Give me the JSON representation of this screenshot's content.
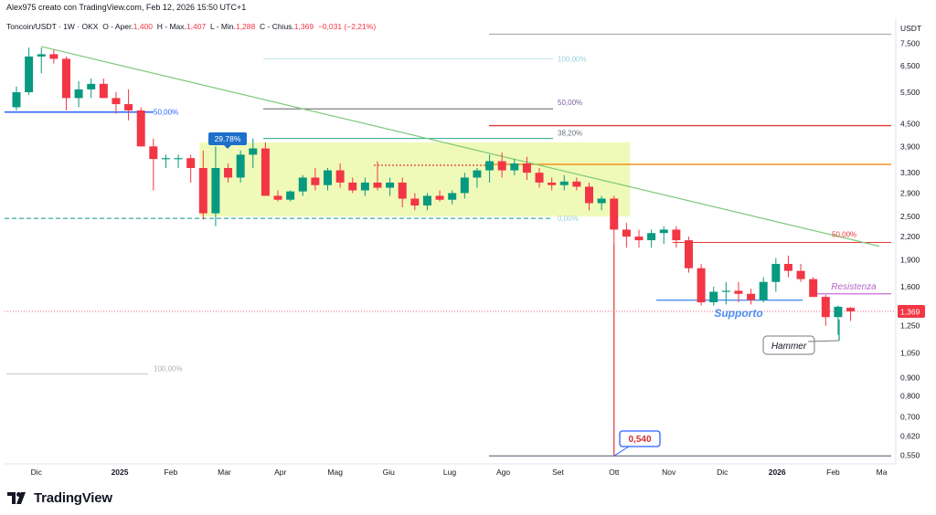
{
  "header": {
    "author_line": "Alex975 creato con TradingView.com, Feb 12, 2026 15:50 UTC+1",
    "symbol": "Toncoin/USDT · 1W · OKX",
    "open_label": "O - Aper.",
    "open": "1,400",
    "high_label": "H - Max.",
    "high": "1,407",
    "low_label": "L - Min.",
    "low": "1,288",
    "close_label": "C - Chius.",
    "close": "1,369",
    "change": "−0,031 (−2,21%)"
  },
  "currency": "USDT",
  "footer": {
    "brand": "TradingView"
  },
  "chart_data": {
    "type": "candlestick",
    "scale": "log",
    "ylim": [
      0.52,
      8.3
    ],
    "yticks": [
      "7,500",
      "6,500",
      "5,500",
      "4,500",
      "3,900",
      "3,300",
      "2,900",
      "2,500",
      "2,200",
      "1,900",
      "1,600",
      "1,400",
      "1,250",
      "1,050",
      "0,900",
      "0,800",
      "0,700",
      "0,620",
      "0,550"
    ],
    "ytick_values": [
      7.5,
      6.5,
      5.5,
      4.5,
      3.9,
      3.3,
      2.9,
      2.5,
      2.2,
      1.9,
      1.6,
      1.4,
      1.25,
      1.05,
      0.9,
      0.8,
      0.7,
      0.62,
      0.55
    ],
    "x_labels": [
      "Dic",
      "2025",
      "Feb",
      "Mar",
      "Apr",
      "Mag",
      "Giu",
      "Lug",
      "Ago",
      "Set",
      "Ott",
      "Nov",
      "Dic",
      "2026",
      "Feb",
      "Ma"
    ],
    "x_label_bold": [
      "2025",
      "2026"
    ],
    "week_count": 70,
    "x_label_weeks": [
      1.6,
      8.3,
      12.4,
      16.7,
      21.2,
      25.6,
      29.9,
      34.8,
      39.1,
      43.5,
      48.0,
      52.4,
      56.7,
      61.1,
      65.6,
      69.5
    ],
    "candles": [
      {
        "o": 5.0,
        "h": 5.7,
        "l": 4.9,
        "c": 5.5
      },
      {
        "o": 5.5,
        "h": 7.3,
        "l": 5.4,
        "c": 6.9
      },
      {
        "o": 6.9,
        "h": 7.3,
        "l": 6.2,
        "c": 7.0
      },
      {
        "o": 7.0,
        "h": 7.2,
        "l": 6.6,
        "c": 6.8
      },
      {
        "o": 6.8,
        "h": 6.9,
        "l": 4.9,
        "c": 5.3
      },
      {
        "o": 5.3,
        "h": 5.9,
        "l": 5.0,
        "c": 5.6
      },
      {
        "o": 5.6,
        "h": 6.0,
        "l": 5.3,
        "c": 5.8
      },
      {
        "o": 5.8,
        "h": 6.0,
        "l": 5.3,
        "c": 5.3
      },
      {
        "o": 5.3,
        "h": 5.5,
        "l": 4.8,
        "c": 5.1
      },
      {
        "o": 5.1,
        "h": 5.6,
        "l": 4.6,
        "c": 4.9
      },
      {
        "o": 4.9,
        "h": 5.0,
        "l": 3.9,
        "c": 3.9
      },
      {
        "o": 3.9,
        "h": 4.1,
        "l": 2.95,
        "c": 3.6
      },
      {
        "o": 3.6,
        "h": 3.7,
        "l": 3.4,
        "c": 3.62
      },
      {
        "o": 3.62,
        "h": 3.7,
        "l": 3.4,
        "c": 3.62
      },
      {
        "o": 3.62,
        "h": 3.7,
        "l": 3.1,
        "c": 3.4
      },
      {
        "o": 3.4,
        "h": 3.8,
        "l": 2.45,
        "c": 2.55
      },
      {
        "o": 2.55,
        "h": 3.9,
        "l": 2.35,
        "c": 3.4
      },
      {
        "o": 3.4,
        "h": 3.5,
        "l": 3.1,
        "c": 3.2
      },
      {
        "o": 3.2,
        "h": 3.8,
        "l": 3.1,
        "c": 3.7
      },
      {
        "o": 3.7,
        "h": 4.1,
        "l": 3.4,
        "c": 3.85
      },
      {
        "o": 3.85,
        "h": 4.0,
        "l": 2.85,
        "c": 2.85
      },
      {
        "o": 2.85,
        "h": 2.95,
        "l": 2.75,
        "c": 2.78
      },
      {
        "o": 2.78,
        "h": 2.95,
        "l": 2.75,
        "c": 2.93
      },
      {
        "o": 2.93,
        "h": 3.25,
        "l": 2.85,
        "c": 3.2
      },
      {
        "o": 3.2,
        "h": 3.4,
        "l": 2.95,
        "c": 3.05
      },
      {
        "o": 3.05,
        "h": 3.4,
        "l": 2.95,
        "c": 3.35
      },
      {
        "o": 3.35,
        "h": 3.5,
        "l": 3.0,
        "c": 3.1
      },
      {
        "o": 3.1,
        "h": 3.2,
        "l": 2.9,
        "c": 2.95
      },
      {
        "o": 2.95,
        "h": 3.2,
        "l": 2.85,
        "c": 3.1
      },
      {
        "o": 3.1,
        "h": 3.55,
        "l": 2.95,
        "c": 3.0
      },
      {
        "o": 3.0,
        "h": 3.2,
        "l": 2.85,
        "c": 3.1
      },
      {
        "o": 3.1,
        "h": 3.2,
        "l": 2.65,
        "c": 2.8
      },
      {
        "o": 2.8,
        "h": 2.9,
        "l": 2.6,
        "c": 2.68
      },
      {
        "o": 2.68,
        "h": 2.9,
        "l": 2.6,
        "c": 2.85
      },
      {
        "o": 2.85,
        "h": 2.95,
        "l": 2.75,
        "c": 2.78
      },
      {
        "o": 2.78,
        "h": 2.95,
        "l": 2.7,
        "c": 2.9
      },
      {
        "o": 2.9,
        "h": 3.3,
        "l": 2.8,
        "c": 3.2
      },
      {
        "o": 3.2,
        "h": 3.4,
        "l": 3.0,
        "c": 3.35
      },
      {
        "o": 3.35,
        "h": 3.7,
        "l": 3.1,
        "c": 3.55
      },
      {
        "o": 3.55,
        "h": 3.75,
        "l": 3.2,
        "c": 3.35
      },
      {
        "o": 3.35,
        "h": 3.6,
        "l": 3.25,
        "c": 3.5
      },
      {
        "o": 3.5,
        "h": 3.65,
        "l": 3.15,
        "c": 3.3
      },
      {
        "o": 3.3,
        "h": 3.4,
        "l": 3.0,
        "c": 3.1
      },
      {
        "o": 3.1,
        "h": 3.2,
        "l": 2.95,
        "c": 3.05
      },
      {
        "o": 3.05,
        "h": 3.25,
        "l": 2.95,
        "c": 3.12
      },
      {
        "o": 3.12,
        "h": 3.2,
        "l": 2.95,
        "c": 3.02
      },
      {
        "o": 3.02,
        "h": 3.1,
        "l": 2.6,
        "c": 2.72
      },
      {
        "o": 2.72,
        "h": 2.85,
        "l": 2.6,
        "c": 2.8
      },
      {
        "o": 2.8,
        "h": 2.85,
        "l": 2.1,
        "c": 2.3
      },
      {
        "o": 2.3,
        "h": 2.4,
        "l": 2.05,
        "c": 2.2
      },
      {
        "o": 2.2,
        "h": 2.3,
        "l": 2.05,
        "c": 2.15
      },
      {
        "o": 2.15,
        "h": 2.3,
        "l": 2.05,
        "c": 2.25
      },
      {
        "o": 2.25,
        "h": 2.35,
        "l": 2.1,
        "c": 2.3
      },
      {
        "o": 2.3,
        "h": 2.35,
        "l": 2.05,
        "c": 2.15
      },
      {
        "o": 2.15,
        "h": 2.2,
        "l": 1.75,
        "c": 1.8
      },
      {
        "o": 1.8,
        "h": 1.85,
        "l": 1.42,
        "c": 1.45
      },
      {
        "o": 1.45,
        "h": 1.6,
        "l": 1.42,
        "c": 1.55
      },
      {
        "o": 1.55,
        "h": 1.65,
        "l": 1.43,
        "c": 1.56
      },
      {
        "o": 1.56,
        "h": 1.65,
        "l": 1.45,
        "c": 1.53
      },
      {
        "o": 1.53,
        "h": 1.58,
        "l": 1.43,
        "c": 1.47
      },
      {
        "o": 1.47,
        "h": 1.7,
        "l": 1.45,
        "c": 1.65
      },
      {
        "o": 1.65,
        "h": 1.92,
        "l": 1.55,
        "c": 1.85
      },
      {
        "o": 1.85,
        "h": 1.95,
        "l": 1.7,
        "c": 1.77
      },
      {
        "o": 1.77,
        "h": 1.85,
        "l": 1.65,
        "c": 1.68
      },
      {
        "o": 1.68,
        "h": 1.7,
        "l": 1.5,
        "c": 1.5
      },
      {
        "o": 1.5,
        "h": 1.52,
        "l": 1.25,
        "c": 1.32
      },
      {
        "o": 1.32,
        "h": 1.42,
        "l": 1.18,
        "c": 1.41
      },
      {
        "o": 1.4,
        "h": 1.407,
        "l": 1.288,
        "c": 1.369
      }
    ],
    "last_price_label": "1,369",
    "annotations": {
      "fib_labels": [
        "100,00%",
        "50,00%",
        "50,00%",
        "38,20%",
        "0,00%",
        "100,00%",
        "50,00%"
      ],
      "range_label": "29.78%",
      "low_label": "0,540",
      "support_text": "Supporto",
      "resistance_text": "Resistenza",
      "hammer_text": "Hammer"
    },
    "colors": {
      "up": "#089981",
      "down": "#f23645",
      "range_fill": "#eef9b0",
      "trendline": "#7ec97a",
      "support": "#4d8ef0",
      "resistance": "#e05a73",
      "orange_line": "#f57c00",
      "fib_purple": "#7b5ba6",
      "last_price": "#f23645"
    }
  }
}
